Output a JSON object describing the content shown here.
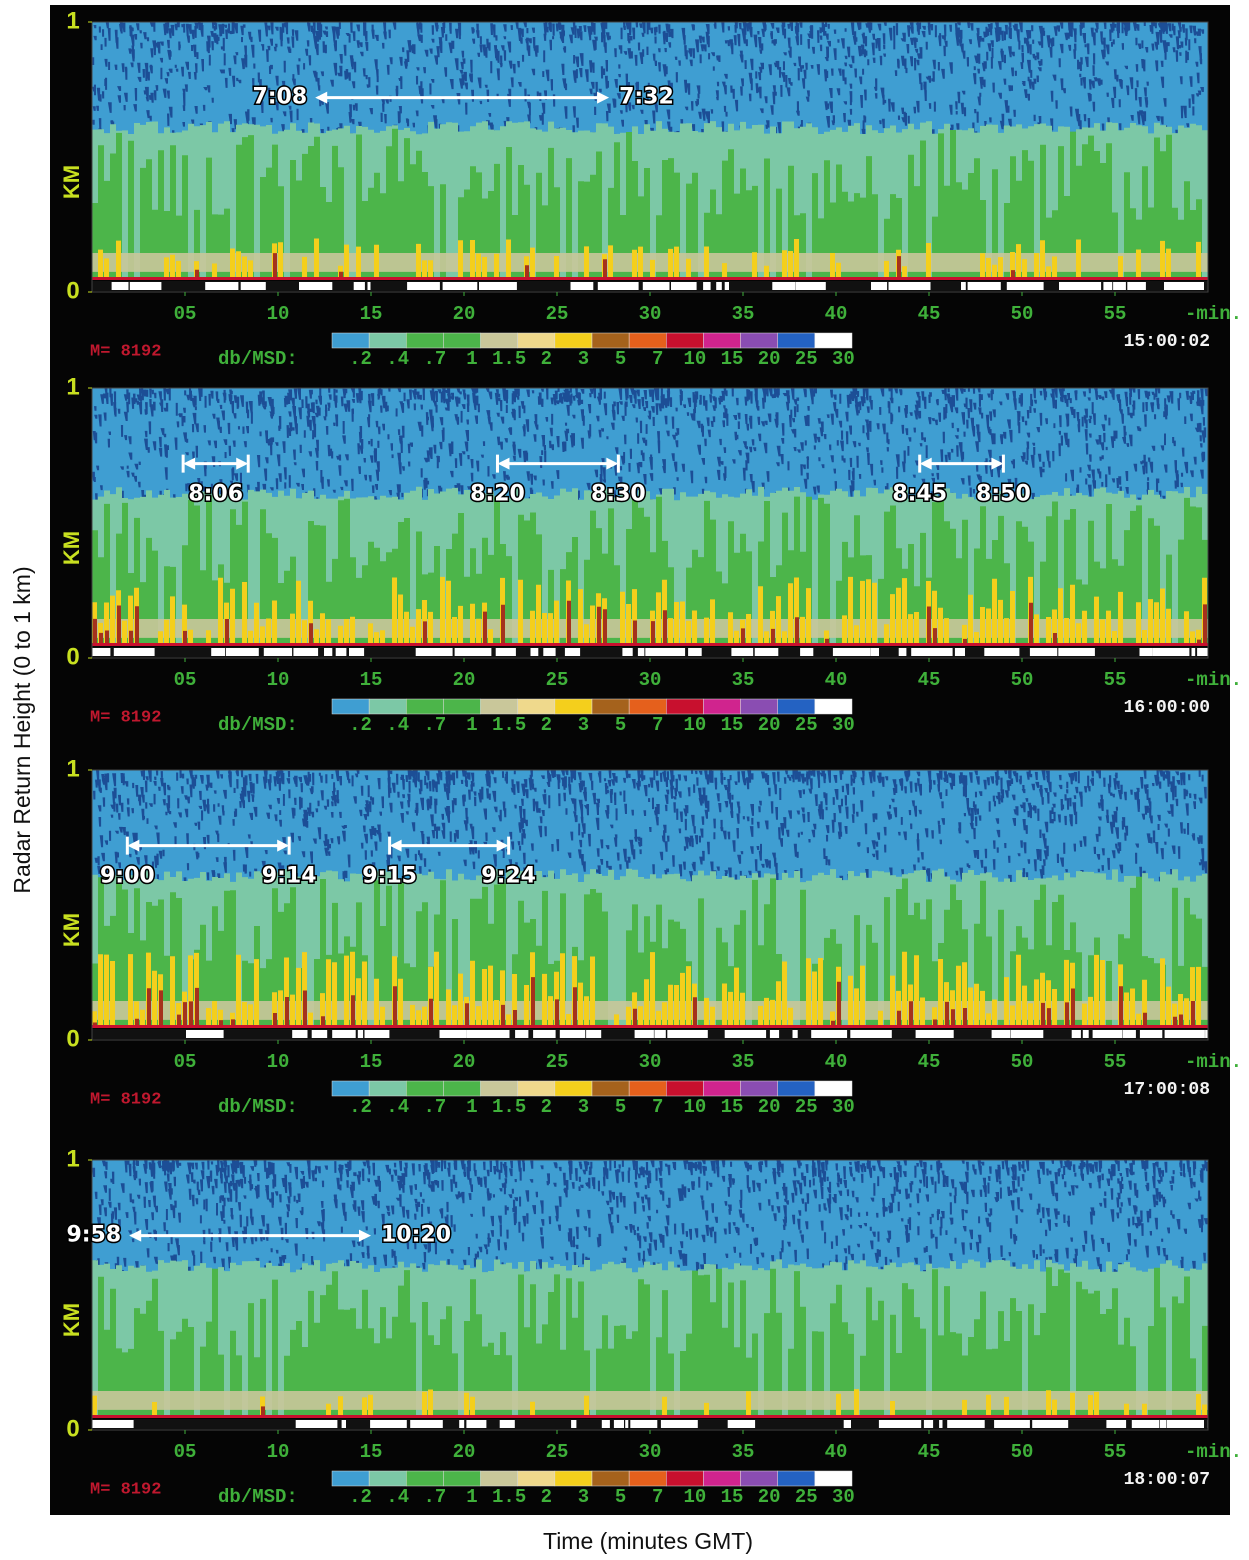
{
  "figure": {
    "ylabel": "Radar Return Height (0 to 1 km)",
    "xlabel": "Time (minutes GMT)",
    "m_label": "M= 8192",
    "colorbar": {
      "label": "db/MSD:",
      "colors": [
        "#3f9ed2",
        "#7cc8a6",
        "#4cb54a",
        "#4cb54a",
        "#c9c79a",
        "#efd98c",
        "#f4cf1c",
        "#a5621c",
        "#e5601c",
        "#c8102e",
        "#d0248e",
        "#8a4db2",
        "#2462c2",
        "#ffffff"
      ],
      "labels": [
        ".2",
        ".4",
        ".7",
        "1",
        "1.5",
        "2",
        "3",
        "5",
        "7",
        "10",
        "15",
        "20",
        "25",
        "30"
      ]
    }
  },
  "chart_data": [
    {
      "type": "time-height",
      "ylabel": "KM",
      "xunit": "-min.",
      "xlim": [
        0,
        60
      ],
      "ylim": [
        0,
        1
      ],
      "yticks": [
        0,
        1
      ],
      "xticks": [
        {
          "value": 5,
          "label": "05"
        },
        10,
        15,
        20,
        25,
        30,
        35,
        40,
        45,
        50,
        55
      ],
      "timestamp": "15:00:02",
      "end_bars": false,
      "annotations": [
        {
          "labels": [
            "7:08",
            "7:32"
          ],
          "x": [
            12,
            27.8
          ]
        }
      ]
    },
    {
      "type": "time-height",
      "ylabel": "KM",
      "xunit": "-min.",
      "xlim": [
        0,
        60
      ],
      "ylim": [
        0,
        1
      ],
      "yticks": [
        0,
        1
      ],
      "xticks": [
        {
          "value": 5,
          "label": "05"
        },
        10,
        15,
        20,
        25,
        30,
        35,
        40,
        45,
        50,
        55
      ],
      "timestamp": "16:00:00",
      "end_bars": true,
      "annotations": [
        {
          "labels": [
            "8:06"
          ],
          "x": [
            4.9,
            8.4
          ]
        },
        {
          "labels": [
            "8:20",
            "8:30"
          ],
          "x": [
            21.8,
            28.3
          ]
        },
        {
          "labels": [
            "8:45",
            "8:50"
          ],
          "x": [
            44.5,
            49
          ]
        }
      ]
    },
    {
      "type": "time-height",
      "ylabel": "KM",
      "xunit": "-min.",
      "xlim": [
        0,
        60
      ],
      "ylim": [
        0,
        1
      ],
      "yticks": [
        0,
        1
      ],
      "xticks": [
        {
          "value": 5,
          "label": "05"
        },
        10,
        15,
        20,
        25,
        30,
        35,
        40,
        45,
        50,
        55
      ],
      "timestamp": "17:00:08",
      "end_bars": true,
      "annotations": [
        {
          "labels": [
            "9:00",
            "9:14"
          ],
          "x": [
            1.9,
            10.6
          ]
        },
        {
          "labels": [
            "9:15",
            "9:24"
          ],
          "x": [
            16,
            22.4
          ]
        }
      ]
    },
    {
      "type": "time-height",
      "ylabel": "KM",
      "xunit": "-min.",
      "xlim": [
        0,
        60
      ],
      "ylim": [
        0,
        1
      ],
      "yticks": [
        0,
        1
      ],
      "xticks": [
        {
          "value": 5,
          "label": "05"
        },
        10,
        15,
        20,
        25,
        30,
        35,
        40,
        45,
        50,
        55
      ],
      "timestamp": "18:00:07",
      "end_bars": false,
      "annotations": [
        {
          "labels": [
            "9:58",
            "10:20"
          ],
          "x": [
            2,
            15
          ]
        }
      ]
    }
  ]
}
